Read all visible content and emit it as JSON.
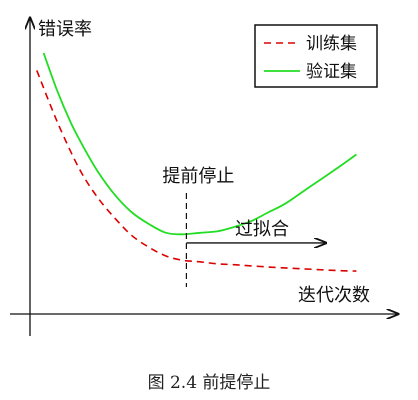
{
  "chart_data": {
    "type": "line",
    "ylabel": "错误率",
    "xlabel": "迭代次数",
    "xlim": [
      0,
      10
    ],
    "ylim": [
      0,
      1
    ],
    "series": [
      {
        "name": "训练集",
        "color": "#dd0000",
        "style": "dashed",
        "x": [
          0.2,
          0.6,
          1.0,
          1.5,
          2.0,
          2.5,
          3.0,
          3.5,
          4.0,
          4.5,
          5.0,
          5.5,
          6.0,
          7.0,
          8.0,
          9.0,
          9.6
        ],
        "y": [
          0.84,
          0.72,
          0.61,
          0.49,
          0.4,
          0.33,
          0.27,
          0.23,
          0.2,
          0.185,
          0.18,
          0.173,
          0.17,
          0.162,
          0.156,
          0.15,
          0.148
        ]
      },
      {
        "name": "验证集",
        "color": "#22dd22",
        "style": "solid",
        "x": [
          0.4,
          0.8,
          1.2,
          1.6,
          2.0,
          2.5,
          3.0,
          3.5,
          4.0,
          4.5,
          5.0,
          5.5,
          6.0,
          6.5,
          7.0,
          7.5,
          8.0,
          8.5,
          9.0,
          9.6
        ],
        "y": [
          0.9,
          0.77,
          0.66,
          0.57,
          0.49,
          0.41,
          0.35,
          0.31,
          0.28,
          0.275,
          0.28,
          0.285,
          0.3,
          0.32,
          0.35,
          0.38,
          0.42,
          0.46,
          0.5,
          0.55
        ]
      }
    ],
    "annotations": {
      "early_stop": {
        "label": "提前停止",
        "x": 4.6
      },
      "overfit": {
        "label": "过拟合",
        "from_x": 4.6,
        "to_x": 8.7,
        "y": 0.245
      }
    },
    "legend_position": "top-right"
  },
  "caption": "图 2.4 前提停止"
}
